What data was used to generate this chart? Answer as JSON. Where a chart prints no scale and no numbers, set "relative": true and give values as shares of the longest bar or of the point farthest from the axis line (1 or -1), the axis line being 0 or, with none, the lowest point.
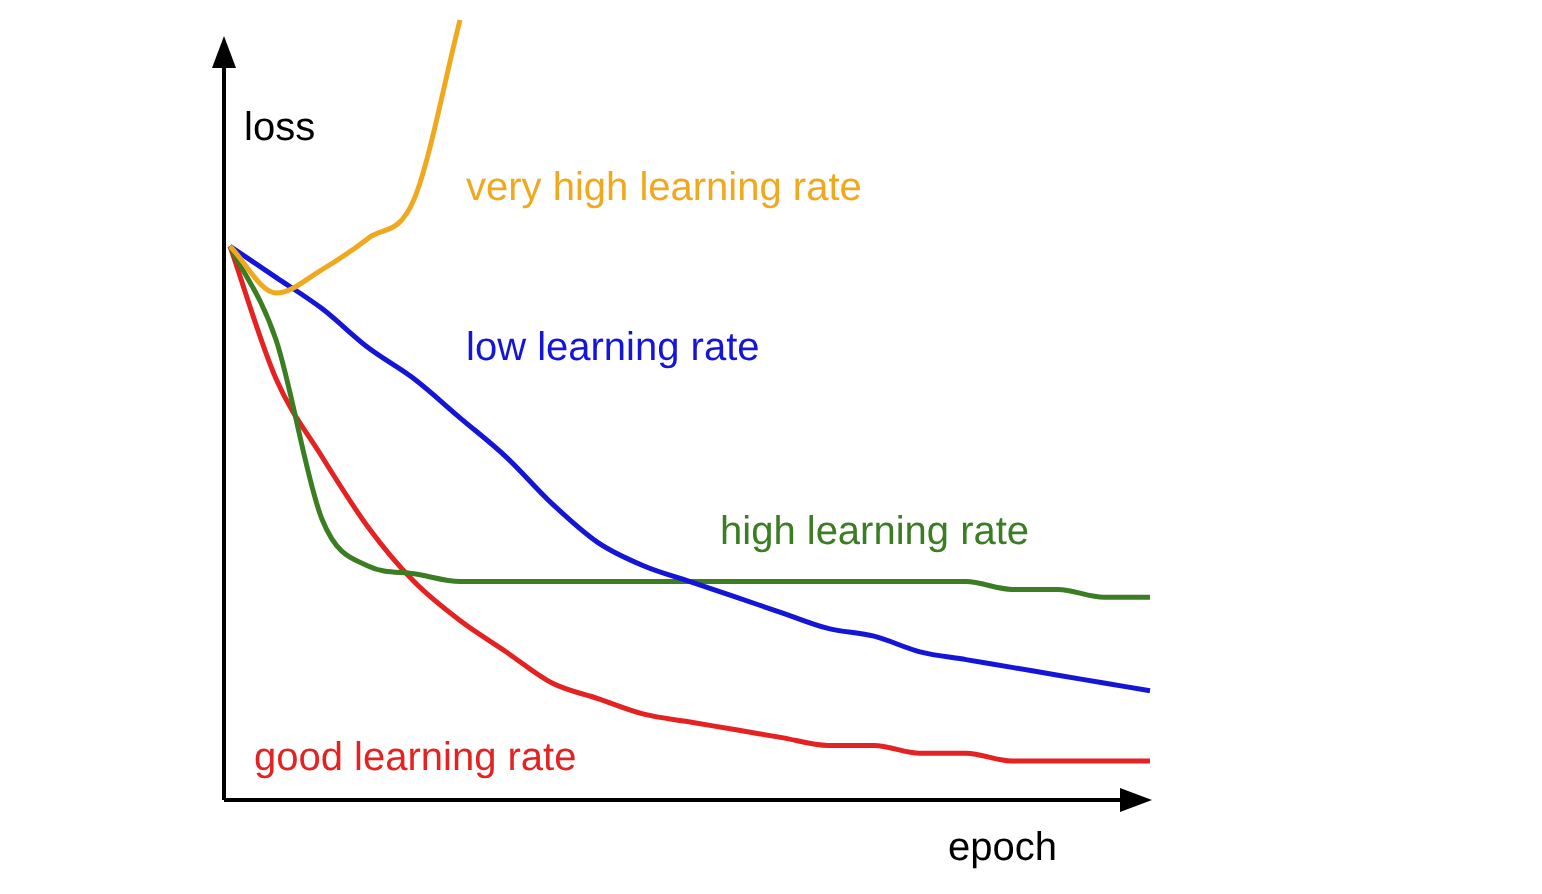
{
  "chart_data": {
    "type": "line",
    "relative": true,
    "xlabel": "epoch",
    "ylabel": "loss",
    "categories": [
      null,
      null,
      null,
      null,
      null,
      null,
      null,
      null,
      null,
      null,
      null,
      null,
      null,
      null,
      null,
      null,
      null,
      null,
      null,
      null,
      null
    ],
    "series": [
      {
        "name": "very high learning rate",
        "color": "#f0a91e",
        "values": [
          0.71,
          0.65,
          0.68,
          0.72,
          0.77,
          1,
          null,
          null,
          null,
          null,
          null,
          null,
          null,
          null,
          null,
          null,
          null,
          null,
          null,
          null,
          null
        ]
      },
      {
        "name": "low learning rate",
        "color": "#1515d8",
        "values": [
          0.71,
          0.67,
          0.63,
          0.58,
          0.54,
          0.49,
          0.44,
          0.38,
          0.33,
          0.3,
          0.28,
          0.26,
          0.24,
          0.22,
          0.21,
          0.19,
          0.18,
          0.17,
          0.16,
          0.15,
          0.14
        ]
      },
      {
        "name": "high learning rate",
        "color": "#3b7d23",
        "values": [
          0.71,
          0.59,
          0.36,
          0.3,
          0.29,
          0.28,
          0.28,
          0.28,
          0.28,
          0.28,
          0.28,
          0.28,
          0.28,
          0.28,
          0.28,
          0.28,
          0.28,
          0.27,
          0.27,
          0.26,
          0.26
        ]
      },
      {
        "name": "good learning rate",
        "color": "#e52222",
        "values": [
          0.71,
          0.54,
          0.44,
          0.35,
          0.28,
          0.23,
          0.19,
          0.15,
          0.13,
          0.11,
          0.1,
          0.09,
          0.08,
          0.07,
          0.07,
          0.06,
          0.06,
          0.05,
          0.05,
          0.05,
          0.05
        ]
      }
    ]
  }
}
